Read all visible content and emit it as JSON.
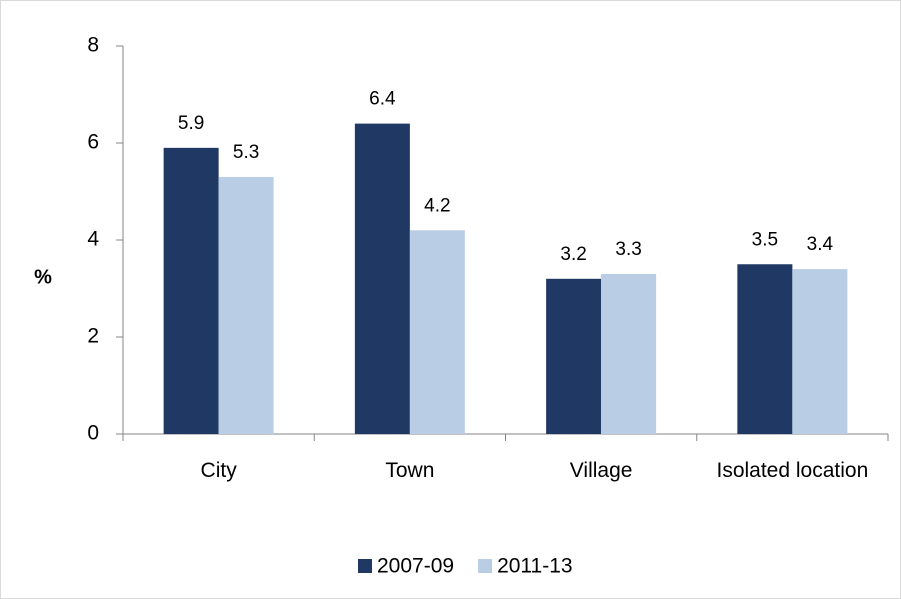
{
  "chart_data": {
    "type": "bar",
    "categories": [
      "City",
      "Town",
      "Village",
      "Isolated location"
    ],
    "series": [
      {
        "name": "2007-09",
        "color": "#1f3864",
        "values": [
          5.9,
          6.4,
          3.2,
          3.5
        ]
      },
      {
        "name": "2011-13",
        "color": "#b9cde5",
        "values": [
          5.3,
          4.2,
          3.3,
          3.4
        ]
      }
    ],
    "ylabel": "%",
    "ylim": [
      0,
      8
    ],
    "yticks": [
      0,
      2,
      4,
      6,
      8
    ],
    "legend": "bottom"
  }
}
